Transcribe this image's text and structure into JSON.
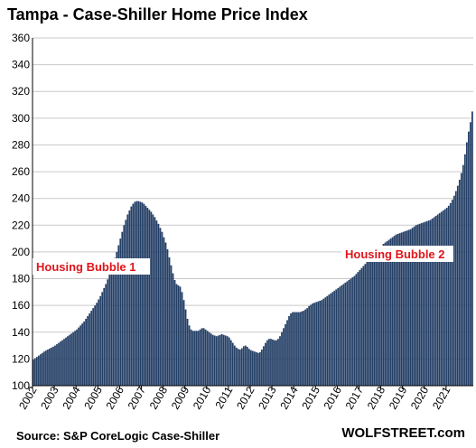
{
  "chart_data": {
    "type": "bar",
    "title": "Tampa - Case-Shiller Home Price Index",
    "source": "Source: S&P CoreLogic Case-Shiller",
    "brand": "WOLFSTREET.com",
    "xlabel": "",
    "ylabel": "",
    "ylim": [
      100,
      360
    ],
    "yticks": [
      100,
      120,
      140,
      160,
      180,
      200,
      220,
      240,
      260,
      280,
      300,
      320,
      340,
      360
    ],
    "x_labels": [
      "2002",
      "2003",
      "2004",
      "2005",
      "2006",
      "2007",
      "2008",
      "2009",
      "2010",
      "2011",
      "2012",
      "2013",
      "2014",
      "2015",
      "2016",
      "2017",
      "2018",
      "2019",
      "2020",
      "2021"
    ],
    "grid": "horizontal",
    "bar_color": "#243f66",
    "start_date": "2002-01",
    "frequency": "monthly",
    "annotations": [
      {
        "text": "Housing Bubble 1"
      },
      {
        "text": "Housing Bubble 2"
      }
    ],
    "values": [
      119.5,
      120.5,
      121.5,
      122.5,
      123.5,
      124.5,
      125.5,
      126.3,
      127,
      127.8,
      128.5,
      129.2,
      130,
      131,
      132,
      133,
      134,
      135,
      136,
      137,
      138,
      139,
      140,
      141,
      142,
      143.5,
      145,
      146.5,
      148,
      150,
      152,
      154,
      156,
      158,
      160,
      162,
      164.5,
      167,
      170,
      173,
      176,
      179.5,
      183,
      187,
      191,
      195.5,
      200,
      205,
      210,
      215,
      220,
      224,
      228,
      231,
      234,
      236,
      237.5,
      238,
      238,
      237.5,
      237,
      236,
      234.5,
      233,
      231.5,
      230,
      228,
      226,
      223.5,
      221,
      218,
      215,
      211,
      207,
      202,
      196,
      190,
      184,
      179,
      176,
      175,
      174,
      170,
      164,
      157,
      150,
      145,
      142,
      141,
      141,
      141,
      141,
      142,
      143,
      143,
      142,
      141,
      140,
      139,
      138,
      137.5,
      137,
      137.5,
      138,
      138.5,
      138,
      137.5,
      137,
      136,
      134,
      132,
      130,
      128.5,
      127.5,
      127,
      128,
      129.5,
      130,
      129,
      127.5,
      126.5,
      126,
      125.5,
      125,
      124.5,
      125,
      127,
      129.5,
      132,
      134,
      135,
      135,
      134.5,
      134,
      134,
      135,
      137,
      140,
      143,
      146,
      149,
      152,
      154,
      155,
      155,
      155,
      155,
      155,
      155.5,
      156,
      157,
      158,
      159.5,
      160.5,
      161.5,
      162,
      162.5,
      163,
      163.5,
      164,
      165,
      166,
      167,
      168,
      169,
      170,
      171,
      172,
      173,
      174,
      175,
      176,
      177,
      178,
      179,
      180,
      181,
      182,
      183.5,
      185,
      186.5,
      188,
      189.5,
      191,
      192.5,
      194,
      195.5,
      197,
      198.5,
      200,
      201.5,
      203,
      204.5,
      206,
      207,
      208,
      209,
      210,
      211,
      212,
      213,
      213.5,
      214,
      214.5,
      215,
      215.5,
      216,
      216.5,
      217,
      218,
      219,
      220,
      220.5,
      221,
      221.5,
      222,
      222.5,
      223,
      223.5,
      224,
      225,
      226,
      227,
      228,
      229,
      230,
      231,
      232,
      233,
      234.5,
      236.5,
      239,
      242,
      245.5,
      249.5,
      254,
      259,
      265,
      273,
      282,
      290,
      297,
      305
    ]
  }
}
